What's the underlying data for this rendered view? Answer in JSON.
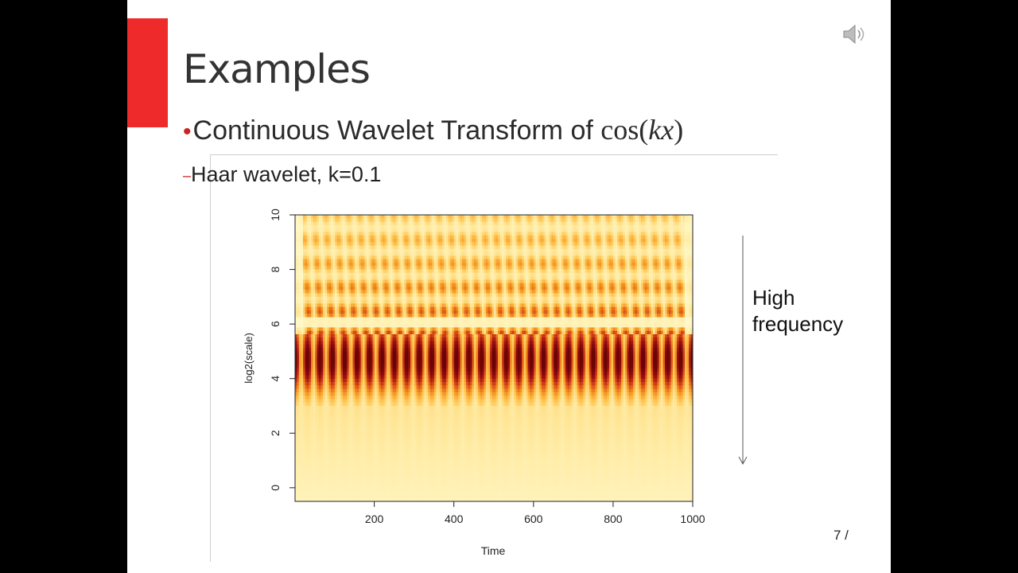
{
  "slide": {
    "title": "Examples",
    "bullet": "Continuous Wavelet Transform of ",
    "bullet_math_fn": "cos(",
    "bullet_math_var": "kx",
    "bullet_math_close": ")",
    "sub_bullet": "Haar wavelet, k=0.1",
    "annotation_line1": "High",
    "annotation_line2": "frequency",
    "page_number": "7 /",
    "accent_color": "#ee2a2a",
    "icons": [
      "speaker-icon",
      "down-arrow-icon"
    ]
  },
  "chart_data": {
    "type": "heatmap",
    "title": "",
    "xlabel": "Time",
    "ylabel": "log2(scale)",
    "xlim": [
      1,
      1000
    ],
    "ylim": [
      -0.5,
      10
    ],
    "xticks": [
      200,
      400,
      600,
      800,
      1000
    ],
    "yticks": [
      0,
      2,
      4,
      6,
      8,
      10
    ],
    "colormap": [
      "#fffacc",
      "#ffe79a",
      "#ffc24d",
      "#f08a1e",
      "#d2421a",
      "#9b0e12",
      "#6b0505"
    ],
    "signal": "cos(0.1 * t)",
    "cycles": 16,
    "dominant_scale_log2": 4.7,
    "grid": false
  }
}
